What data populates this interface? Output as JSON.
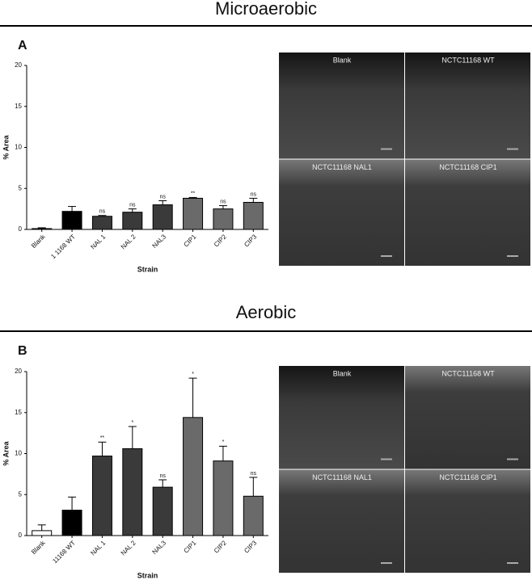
{
  "chart_data": [
    {
      "type": "bar",
      "title": "Microaerobic",
      "panel_label": "A",
      "xlabel": "Strain",
      "ylabel": "% Area",
      "categories": [
        "Blank",
        "1 1168 WT",
        "NAL 1",
        "NAL 2",
        "NAL3",
        "CIP1",
        "CIP2",
        "CIP3"
      ],
      "values": [
        0.1,
        2.2,
        1.6,
        2.1,
        3.0,
        3.8,
        2.5,
        3.3
      ],
      "errors": [
        0.1,
        0.6,
        0.1,
        0.4,
        0.5,
        0.1,
        0.4,
        0.5
      ],
      "annotations": [
        null,
        null,
        "ns",
        "ns",
        "ns",
        "**",
        "ns",
        "ns"
      ],
      "colors": [
        "#ffffff",
        "#000000",
        "#3a3a3a",
        "#3a3a3a",
        "#3a3a3a",
        "#6a6a6a",
        "#6a6a6a",
        "#6a6a6a"
      ],
      "ylim": [
        0,
        20
      ],
      "yticks": [
        0,
        5,
        10,
        15,
        20
      ],
      "images": [
        "Blank",
        "NCTC11168 WT",
        "NCTC11168 NAL1",
        "NCTC11168 CIP1"
      ]
    },
    {
      "type": "bar",
      "title": "Aerobic",
      "panel_label": "B",
      "xlabel": "Strain",
      "ylabel": "% Area",
      "categories": [
        "Blank",
        "11168 WT",
        "NAL 1",
        "NAL 2",
        "NAL3",
        "CIP1",
        "CIP2",
        "CIP3"
      ],
      "values": [
        0.6,
        3.1,
        9.7,
        10.6,
        5.9,
        14.4,
        9.1,
        4.8
      ],
      "errors": [
        0.7,
        1.6,
        1.7,
        2.7,
        0.9,
        4.8,
        1.8,
        2.3
      ],
      "annotations": [
        null,
        null,
        "**",
        "*",
        "ns",
        "*",
        "*",
        "ns"
      ],
      "colors": [
        "#ffffff",
        "#000000",
        "#3a3a3a",
        "#3a3a3a",
        "#3a3a3a",
        "#6a6a6a",
        "#6a6a6a",
        "#6a6a6a"
      ],
      "ylim": [
        0,
        20
      ],
      "yticks": [
        0,
        5,
        10,
        15,
        20
      ],
      "images": [
        "Blank",
        "NCTC11168 WT",
        "NCTC11168 NAL1",
        "NCTC11168 CIP1"
      ]
    }
  ]
}
